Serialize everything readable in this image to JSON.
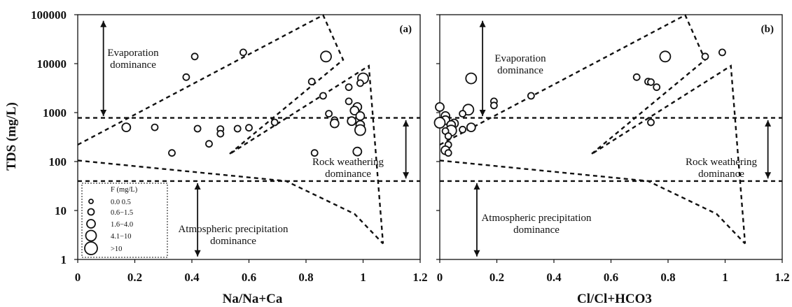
{
  "figure": {
    "ylabel": "TDS (mg/L)",
    "legend": {
      "title": "F (mg/L)",
      "items": [
        "0.0 0.5",
        "0.6−1.5",
        "1.6−4.0",
        "4.1−10",
        ">10"
      ]
    }
  },
  "chart_data": [
    {
      "type": "scatter",
      "panel_label": "(a)",
      "xlabel": "Na/Na+Ca",
      "ylabel": "TDS (mg/L)",
      "xlim": [
        0,
        1.2
      ],
      "ylim": [
        1,
        100000
      ],
      "y_scale": "log",
      "x_ticks": [
        "0",
        "0.2",
        "0.4",
        "0.6",
        "0.8",
        "1",
        "1.2"
      ],
      "y_ticks": [
        "1",
        "10",
        "100",
        "1000",
        "10000",
        "100000"
      ],
      "size_classes": [
        "0.0 0.5",
        "0.6−1.5",
        "1.6−4.0",
        "4.1−10",
        ">10"
      ],
      "points": [
        {
          "x": 0.41,
          "y": 14000,
          "s": 1
        },
        {
          "x": 0.58,
          "y": 17000,
          "s": 1
        },
        {
          "x": 0.38,
          "y": 5300,
          "s": 1
        },
        {
          "x": 0.87,
          "y": 14000,
          "s": 3
        },
        {
          "x": 1.0,
          "y": 5000,
          "s": 3
        },
        {
          "x": 0.82,
          "y": 4300,
          "s": 1
        },
        {
          "x": 0.99,
          "y": 4000,
          "s": 1
        },
        {
          "x": 0.95,
          "y": 3300,
          "s": 1
        },
        {
          "x": 0.86,
          "y": 2200,
          "s": 1
        },
        {
          "x": 0.95,
          "y": 1700,
          "s": 1
        },
        {
          "x": 0.98,
          "y": 1300,
          "s": 2
        },
        {
          "x": 0.97,
          "y": 1100,
          "s": 2
        },
        {
          "x": 0.88,
          "y": 950,
          "s": 1
        },
        {
          "x": 0.99,
          "y": 850,
          "s": 2
        },
        {
          "x": 0.9,
          "y": 700,
          "s": 1
        },
        {
          "x": 0.96,
          "y": 670,
          "s": 2
        },
        {
          "x": 0.9,
          "y": 600,
          "s": 2
        },
        {
          "x": 0.99,
          "y": 560,
          "s": 2
        },
        {
          "x": 0.99,
          "y": 440,
          "s": 3
        },
        {
          "x": 0.98,
          "y": 160,
          "s": 2
        },
        {
          "x": 0.83,
          "y": 150,
          "s": 1
        },
        {
          "x": 0.69,
          "y": 630,
          "s": 1
        },
        {
          "x": 0.17,
          "y": 500,
          "s": 2
        },
        {
          "x": 0.27,
          "y": 500,
          "s": 1
        },
        {
          "x": 0.42,
          "y": 470,
          "s": 1
        },
        {
          "x": 0.5,
          "y": 460,
          "s": 1
        },
        {
          "x": 0.56,
          "y": 470,
          "s": 1
        },
        {
          "x": 0.6,
          "y": 490,
          "s": 1
        },
        {
          "x": 0.5,
          "y": 370,
          "s": 1
        },
        {
          "x": 0.46,
          "y": 230,
          "s": 1
        },
        {
          "x": 0.33,
          "y": 150,
          "s": 1
        }
      ],
      "boundaries": [
        {
          "name": "upper",
          "points": [
            [
              0,
              220
            ],
            [
              0.86,
              98000
            ],
            [
              0.93,
              12000
            ],
            [
              0.53,
              140
            ],
            [
              1.02,
              9000
            ],
            [
              1.07,
              2.1
            ]
          ]
        },
        {
          "name": "lower",
          "points": [
            [
              0,
              105
            ],
            [
              0.73,
              40
            ],
            [
              0.97,
              8.5
            ],
            [
              1.07,
              2.1
            ]
          ]
        },
        {
          "name": "h_upper",
          "points": [
            [
              0,
              780
            ],
            [
              1.2,
              780
            ]
          ]
        },
        {
          "name": "h_lower",
          "points": [
            [
              0,
              40
            ],
            [
              1.2,
              40
            ]
          ]
        }
      ],
      "regions": [
        {
          "lines": [
            "Evaporation",
            "dominance"
          ]
        },
        {
          "lines": [
            "Rock weathering",
            "dominance"
          ]
        },
        {
          "lines": [
            "Atmospheric precipitation",
            "dominance"
          ]
        }
      ],
      "arrows": [
        {
          "x": 0.09,
          "y1": 850,
          "y2": 75000
        },
        {
          "x": 1.15,
          "y1": 45,
          "y2": 700
        },
        {
          "x": 0.42,
          "y1": 1.15,
          "y2": 36
        }
      ]
    },
    {
      "type": "scatter",
      "panel_label": "(b)",
      "xlabel": "Cl/Cl+HCO3",
      "ylabel": "TDS (mg/L)",
      "xlim": [
        0,
        1.2
      ],
      "ylim": [
        1,
        100000
      ],
      "y_scale": "log",
      "x_ticks": [
        "0",
        "0.2",
        "0.4",
        "0.6",
        "0.8",
        "1",
        "1.2"
      ],
      "y_ticks": [
        "1",
        "10",
        "100",
        "1000",
        "10000",
        "100000"
      ],
      "size_classes": [
        "0.0 0.5",
        "0.6−1.5",
        "1.6−4.0",
        "4.1−10",
        ">10"
      ],
      "points": [
        {
          "x": 0.79,
          "y": 14000,
          "s": 3
        },
        {
          "x": 0.93,
          "y": 14000,
          "s": 1
        },
        {
          "x": 0.99,
          "y": 17000,
          "s": 1
        },
        {
          "x": 0.11,
          "y": 5000,
          "s": 3
        },
        {
          "x": 0.69,
          "y": 5300,
          "s": 1
        },
        {
          "x": 0.73,
          "y": 4300,
          "s": 1
        },
        {
          "x": 0.74,
          "y": 4200,
          "s": 1
        },
        {
          "x": 0.76,
          "y": 3300,
          "s": 1
        },
        {
          "x": 0.32,
          "y": 2200,
          "s": 1
        },
        {
          "x": 0.19,
          "y": 1700,
          "s": 1
        },
        {
          "x": 0.19,
          "y": 1400,
          "s": 1
        },
        {
          "x": 0.0,
          "y": 1300,
          "s": 2
        },
        {
          "x": 0.1,
          "y": 1150,
          "s": 3
        },
        {
          "x": 0.08,
          "y": 950,
          "s": 1
        },
        {
          "x": 0.02,
          "y": 850,
          "s": 2
        },
        {
          "x": 0.02,
          "y": 700,
          "s": 2
        },
        {
          "x": 0.0,
          "y": 620,
          "s": 3
        },
        {
          "x": 0.05,
          "y": 600,
          "s": 2
        },
        {
          "x": 0.04,
          "y": 560,
          "s": 2
        },
        {
          "x": 0.11,
          "y": 500,
          "s": 2
        },
        {
          "x": 0.08,
          "y": 450,
          "s": 1
        },
        {
          "x": 0.04,
          "y": 430,
          "s": 3
        },
        {
          "x": 0.02,
          "y": 420,
          "s": 1
        },
        {
          "x": 0.03,
          "y": 330,
          "s": 1
        },
        {
          "x": 0.03,
          "y": 220,
          "s": 1
        },
        {
          "x": 0.02,
          "y": 170,
          "s": 2
        },
        {
          "x": 0.03,
          "y": 150,
          "s": 1
        },
        {
          "x": 0.74,
          "y": 630,
          "s": 1
        }
      ],
      "boundaries": [
        {
          "name": "upper",
          "points": [
            [
              0,
              220
            ],
            [
              0.86,
              98000
            ],
            [
              0.93,
              12000
            ],
            [
              0.53,
              140
            ],
            [
              1.02,
              9000
            ],
            [
              1.07,
              2.1
            ]
          ]
        },
        {
          "name": "lower",
          "points": [
            [
              0,
              105
            ],
            [
              0.73,
              40
            ],
            [
              0.97,
              8.5
            ],
            [
              1.07,
              2.1
            ]
          ]
        },
        {
          "name": "h_upper",
          "points": [
            [
              0,
              780
            ],
            [
              1.2,
              780
            ]
          ]
        },
        {
          "name": "h_lower",
          "points": [
            [
              0,
              40
            ],
            [
              1.2,
              40
            ]
          ]
        }
      ],
      "regions": [
        {
          "lines": [
            "Evaporation",
            "dominance"
          ]
        },
        {
          "lines": [
            "Rock weathering",
            "dominance"
          ]
        },
        {
          "lines": [
            "Atmospheric precipitation",
            "dominance"
          ]
        }
      ],
      "arrows": [
        {
          "x": 0.15,
          "y1": 850,
          "y2": 75000
        },
        {
          "x": 1.15,
          "y1": 45,
          "y2": 700
        },
        {
          "x": 0.13,
          "y1": 1.15,
          "y2": 36
        }
      ]
    }
  ]
}
